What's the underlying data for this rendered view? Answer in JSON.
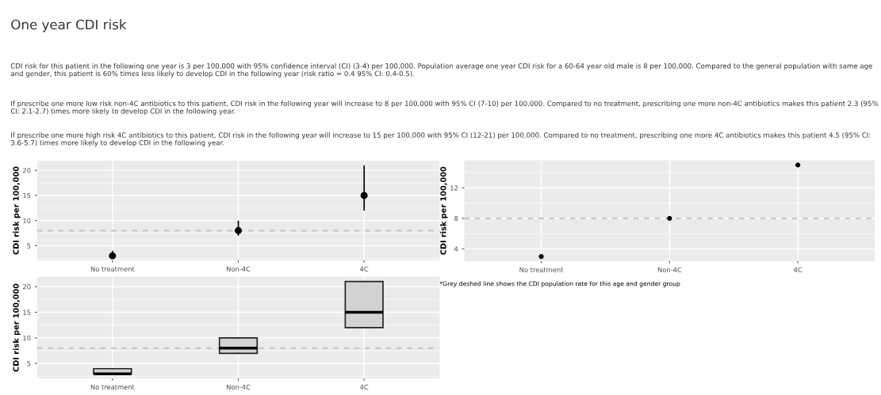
{
  "chart_data": [
    {
      "type": "scatter",
      "title": "One year CDI risk",
      "annotations": [
        "CDI risk for this patient in the following one year is 3 per 100,000 with 95% confidence interval (CI) (3-4) per 100,000. Population average one year CDI risk for a 60-64 year old male is 8 per 100,000. Compared to the general population with same age and gender, this patient is 60% times less likely to develop CDI in the following year (risk ratio = 0.4 95% CI: 0.4-0.5).",
        "If prescribe one more low risk non-4C antibiotics to this patient, CDI risk in the following year will increase to 8 per 100,000 with 95% CI (7-10) per 100,000. Compared to no treatment, prescribing one more non-4C antibiotics makes this patient 2.3 (95% CI: 2.1-2.7) times more likely to develop CDI in the following year.",
        "If prescribe one more high risk 4C antibiotics to this patient, CDI risk in the following year will increase to 15 per 100,000 with 95% CI (12-21) per 100,000. Compared to no treatment, prescribing one more 4C antibiotics makes this patient 4.5 (95% CI: 3.6-5.7) times more likely to develop CDI in the following year."
      ],
      "ylabel": "CDI risk per 100,000",
      "categories": [
        "No treatment",
        "Non-4C",
        "4C"
      ],
      "values": [
        3,
        8,
        15
      ],
      "errors": [
        [
          3,
          4
        ],
        [
          7,
          10
        ],
        [
          12,
          21
        ]
      ],
      "color": "#000000",
      "marker": "circle",
      "ylim": [
        2.1,
        21.9
      ],
      "yticks": [
        5,
        10,
        15,
        20
      ],
      "grid": true,
      "ref_lines": [
        {
          "axis": "y",
          "value": 8,
          "color": "#c8c8c8",
          "line_style": "dashed"
        }
      ]
    },
    {
      "type": "scatter",
      "ylabel": "CDI risk per 100,000",
      "categories": [
        "No treatment",
        "Non-4C",
        "4C"
      ],
      "values": [
        3,
        8,
        15
      ],
      "color": "#000000",
      "marker": "circle",
      "ylim": [
        2.4,
        15.6
      ],
      "yticks": [
        4,
        8,
        12
      ],
      "grid": true,
      "ref_lines": [
        {
          "axis": "y",
          "value": 8,
          "color": "#c8c8c8",
          "line_style": "dashed"
        }
      ],
      "annotations": [
        "*Grey deshed line shows the CDI population rate for this age and gender group"
      ]
    },
    {
      "type": "box",
      "ylabel": "CDI risk per 100,000",
      "categories": [
        "No treatment",
        "Non-4C",
        "4C"
      ],
      "boxes": [
        {
          "low": 3,
          "q1": 3,
          "median": 3,
          "q3": 4,
          "high": 4
        },
        {
          "low": 7,
          "q1": 7,
          "median": 8,
          "q3": 10,
          "high": 10
        },
        {
          "low": 12,
          "q1": 12,
          "median": 15,
          "q3": 21,
          "high": 21
        }
      ],
      "color": "#d3d3d3",
      "ylim": [
        2.1,
        21.9
      ],
      "yticks": [
        5,
        10,
        15,
        20
      ],
      "grid": true,
      "ref_lines": [
        {
          "axis": "y",
          "value": 8,
          "color": "#c8c8c8",
          "line_style": "dashed"
        }
      ]
    }
  ]
}
